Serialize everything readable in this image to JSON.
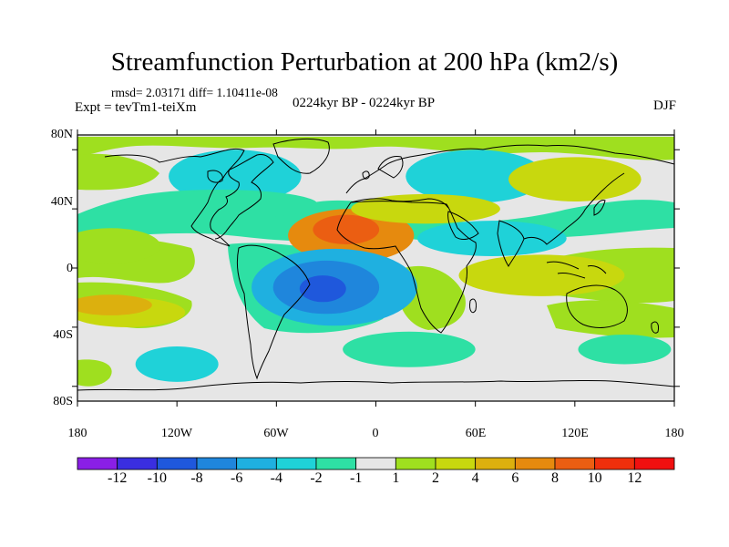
{
  "title": "Streamfunction Perturbation at 200 hPa (km2/s)",
  "stats": "rmsd= 2.03171 diff= 1.10411e-08",
  "experiment": "Expt = tevTm1-teiXm",
  "period": "0224kyr BP - 0224kyr BP",
  "season": "DJF",
  "lat_labels": [
    "80N",
    "40N",
    "0",
    "40S",
    "80S"
  ],
  "lon_labels": [
    "180",
    "120W",
    "60W",
    "0",
    "60E",
    "120E",
    "180"
  ],
  "colorbar": {
    "labels": [
      "-12",
      "-10",
      "-8",
      "-6",
      "-4",
      "-2",
      "-1",
      "1",
      "2",
      "4",
      "6",
      "8",
      "10",
      "12"
    ],
    "colors": [
      "#8a1fe6",
      "#3a2ee0",
      "#1f58dc",
      "#1f86dc",
      "#1fb0e0",
      "#1fd2d8",
      "#2ee0a4",
      "#e6e6e6",
      "#9fdf1f",
      "#c8d80e",
      "#dcb00e",
      "#e68a0e",
      "#eb5e12",
      "#ef2f0c",
      "#f01010"
    ]
  },
  "map_blobs": [
    {
      "lon": -15,
      "lat": 22,
      "rx": 38,
      "ry": 18,
      "level": 11
    },
    {
      "lon": -18,
      "lat": 26,
      "rx": 20,
      "ry": 10,
      "level": 12
    },
    {
      "lon": -25,
      "lat": -13,
      "rx": 50,
      "ry": 26,
      "level": 4
    },
    {
      "lon": -30,
      "lat": -13,
      "rx": 32,
      "ry": 18,
      "level": 3
    },
    {
      "lon": -32,
      "lat": -14,
      "rx": 14,
      "ry": 9,
      "level": 2
    },
    {
      "lon": -85,
      "lat": 62,
      "rx": 40,
      "ry": 18,
      "level": 5
    },
    {
      "lon": -95,
      "lat": 43,
      "rx": 60,
      "ry": 10,
      "level": 6
    },
    {
      "lon": 60,
      "lat": 62,
      "rx": 42,
      "ry": 18,
      "level": 5
    },
    {
      "lon": 70,
      "lat": 20,
      "rx": 45,
      "ry": 12,
      "level": 5
    },
    {
      "lon": -120,
      "lat": -65,
      "rx": 25,
      "ry": 12,
      "level": 5
    },
    {
      "lon": 20,
      "lat": -55,
      "rx": 40,
      "ry": 12,
      "level": 6
    },
    {
      "lon": 150,
      "lat": -55,
      "rx": 28,
      "ry": 10,
      "level": 6
    },
    {
      "lon": 170,
      "lat": 36,
      "rx": 25,
      "ry": 8,
      "level": 6
    },
    {
      "lon": 120,
      "lat": 60,
      "rx": 40,
      "ry": 15,
      "level": 9
    },
    {
      "lon": 100,
      "lat": -5,
      "rx": 50,
      "ry": 14,
      "level": 9
    },
    {
      "lon": 30,
      "lat": 40,
      "rx": 45,
      "ry": 10,
      "level": 9
    },
    {
      "lon": -160,
      "lat": 15,
      "rx": 30,
      "ry": 12,
      "level": 8
    },
    {
      "lon": -150,
      "lat": -30,
      "rx": 35,
      "ry": 10,
      "level": 9
    },
    {
      "lon": -160,
      "lat": -25,
      "rx": 25,
      "ry": 7,
      "level": 10
    }
  ]
}
